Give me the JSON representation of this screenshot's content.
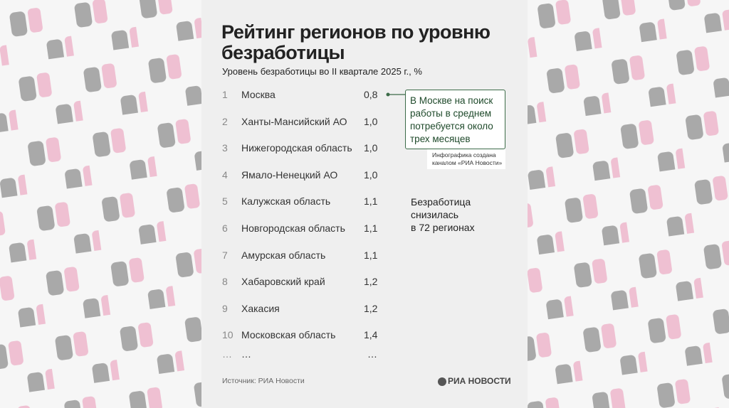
{
  "header": {
    "title": [
      "Рейтинг регионов по уровню",
      "безработицы"
    ],
    "subtitle": "Уровень безработицы во II квартале 2025 г., %"
  },
  "table": {
    "rows": [
      [
        "1",
        "Москва",
        "0,8"
      ],
      [
        "2",
        "Ханты-Мансийский АО",
        "1,0"
      ],
      [
        "3",
        "Нижегородская область",
        "1,0"
      ],
      [
        "4",
        "Ямало-Ненецкий АО",
        "1,0"
      ],
      [
        "5",
        "Калужская область",
        "1,1"
      ],
      [
        "6",
        "Новгородская область",
        "1,1"
      ],
      [
        "7",
        "Амурская область",
        "1,1"
      ],
      [
        "8",
        "Хабаровский край",
        "1,2"
      ],
      [
        "9",
        "Хакасия",
        "1,2"
      ],
      [
        "10",
        "Московская область",
        "1,4"
      ],
      [
        "…",
        "…",
        "…"
      ]
    ]
  },
  "annotation": {
    "lines": [
      "В Москве на поиск",
      "работы в среднем",
      "потребуется около",
      "трех месяцев"
    ]
  },
  "note": {
    "lines": [
      "Инфографика создана",
      "каналом «РИА Новости»"
    ]
  },
  "side_note": {
    "lines": [
      "Безработица",
      "снизилась",
      "в 72 регионах"
    ]
  },
  "footer": {
    "source": "Источник: РИА Новости",
    "logo": "РИА НОВОСТИ"
  }
}
